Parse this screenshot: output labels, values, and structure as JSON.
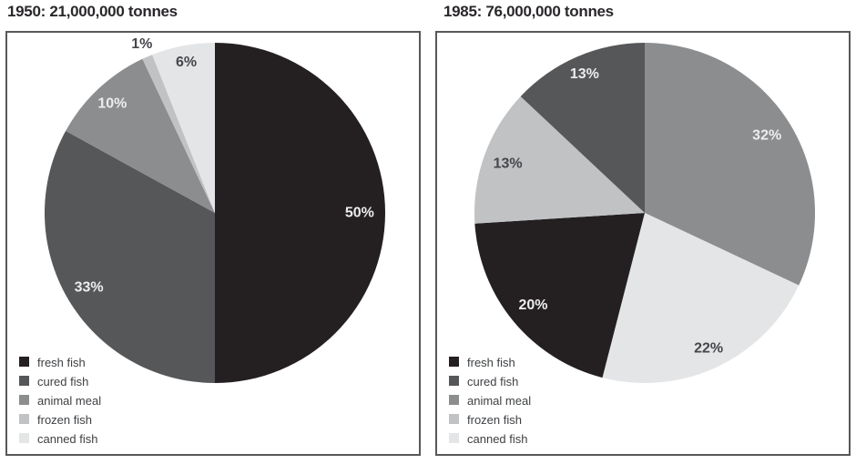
{
  "colors": {
    "title_text": "#2a272a",
    "legend_text": "#3e4043",
    "panel_border": "#57585a",
    "label_light": "#ededee",
    "label_dark": "#45474b",
    "background": "#ffffff"
  },
  "palette": {
    "fresh fish": "#242022",
    "cured fish": "#565759",
    "animal meal": "#8b8d8f",
    "frozen fish": "#c0c2c4",
    "canned fish": "#e4e5e6"
  },
  "chart_data": [
    {
      "type": "pie",
      "title": "1950: 21,000,000 tonnes",
      "total_label": "21,000,000 tonnes",
      "year": "1950",
      "start_angle_deg": 0,
      "direction": "clockwise",
      "legend_position": "bottom-left",
      "categories": [
        "fresh fish",
        "cured fish",
        "animal meal",
        "frozen fish",
        "canned fish"
      ],
      "values": [
        50,
        33,
        10,
        1,
        6
      ],
      "slices": [
        {
          "category": "fresh fish",
          "value": 50,
          "label": "50%",
          "label_r": 0.85
        },
        {
          "category": "cured fish",
          "value": 33,
          "label": "33%",
          "label_r": 0.86
        },
        {
          "category": "animal meal",
          "value": 10,
          "label": "10%",
          "label_r": 0.88
        },
        {
          "category": "frozen fish",
          "value": 1,
          "label": "1%",
          "label_r": 1.08
        },
        {
          "category": "canned fish",
          "value": 6,
          "label": "6%",
          "label_r": 0.9
        }
      ],
      "legend": [
        "fresh fish",
        "cured fish",
        "animal meal",
        "frozen fish",
        "canned fish"
      ]
    },
    {
      "type": "pie",
      "title": "1985: 76,000,000 tonnes",
      "total_label": "76,000,000 tonnes",
      "year": "1985",
      "start_angle_deg": 0,
      "direction": "clockwise",
      "legend_position": "bottom-left",
      "categories": [
        "fresh fish",
        "cured fish",
        "animal meal",
        "frozen fish",
        "canned fish"
      ],
      "values": [
        20,
        13,
        32,
        13,
        22
      ],
      "slices": [
        {
          "category": "animal meal",
          "value": 32,
          "label": "32%",
          "label_r": 0.85
        },
        {
          "category": "canned fish",
          "value": 22,
          "label": "22%",
          "label_r": 0.88
        },
        {
          "category": "fresh fish",
          "value": 20,
          "label": "20%",
          "label_r": 0.85
        },
        {
          "category": "frozen fish",
          "value": 13,
          "label": "13%",
          "label_r": 0.855
        },
        {
          "category": "cured fish",
          "value": 13,
          "label": "13%",
          "label_r": 0.89
        }
      ],
      "legend": [
        "fresh fish",
        "cured fish",
        "animal meal",
        "frozen fish",
        "canned fish"
      ]
    }
  ]
}
